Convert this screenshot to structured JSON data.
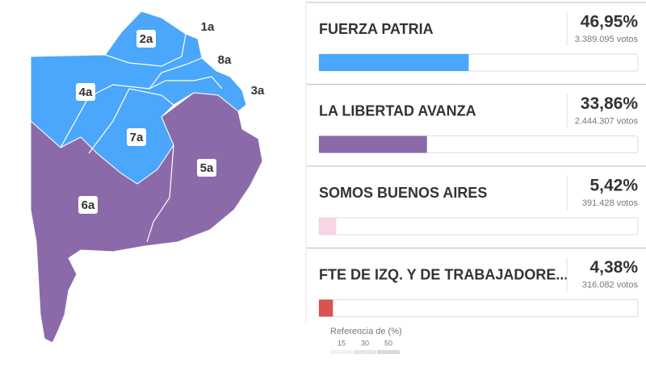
{
  "chart_data": {
    "type": "bar",
    "categories": [
      "FUERZA PATRIA",
      "LA LIBERTAD AVANZA",
      "SOMOS BUENOS AIRES",
      "FTE DE IZQ. Y DE TRABAJADORE..."
    ],
    "values": [
      46.95,
      33.86,
      5.42,
      4.38
    ],
    "value_labels": [
      "46,95%",
      "33,86%",
      "5,42%",
      "4,38%"
    ],
    "vote_labels": [
      "3.389.095 votos",
      "2.444.307 votos",
      "391.428 votos",
      "316.082 votos"
    ],
    "colors": [
      "#4aa7fb",
      "#8b6aa9",
      "#f6d5e5",
      "#d9534f"
    ],
    "xlim": [
      0,
      100
    ],
    "legend": {
      "title": "Referencia de (%)",
      "ticks": [
        15,
        30,
        50
      ]
    }
  },
  "map": {
    "regions": [
      "1a",
      "2a",
      "3a",
      "4a",
      "5a",
      "6a",
      "7a",
      "8a"
    ]
  }
}
